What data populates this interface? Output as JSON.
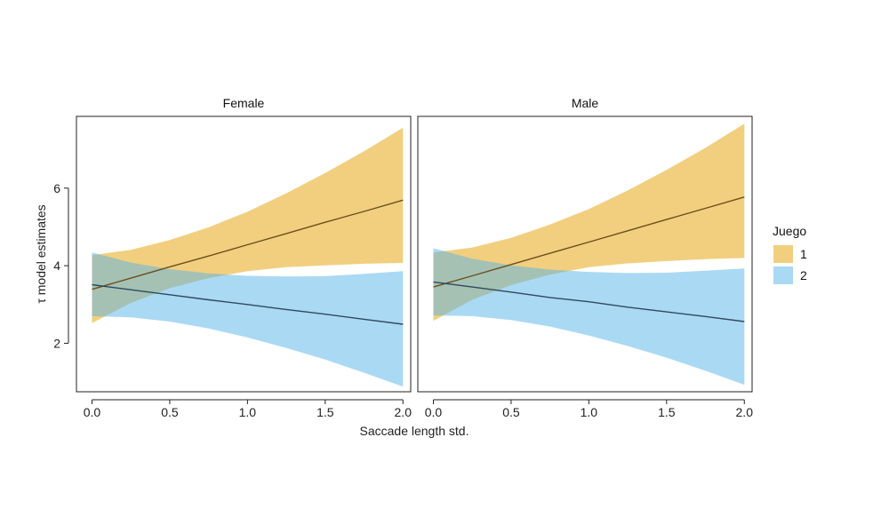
{
  "chart_data": {
    "type": "line",
    "xlabel": "Saccade length std.",
    "ylabel": "τ model estimates",
    "xlim": [
      -0.1,
      2.05
    ],
    "ylim": [
      0.75,
      7.85
    ],
    "x_ticks": [
      "0.0",
      "0.5",
      "1.0",
      "1.5",
      "2.0"
    ],
    "x_tick_values": [
      0,
      0.5,
      1,
      1.5,
      2
    ],
    "y_ticks": [
      "2",
      "4",
      "6"
    ],
    "y_tick_values": [
      2,
      4,
      6
    ],
    "legend": {
      "title": "Juego",
      "position": "right"
    },
    "colors": {
      "1": "#E69F00",
      "2": "#56B4E9",
      "line1": "#6b4f1c",
      "line2": "#2e4a5e"
    },
    "x": [
      0,
      0.25,
      0.5,
      0.75,
      1,
      1.25,
      1.5,
      1.75,
      2
    ],
    "panels": [
      {
        "name": "Female",
        "series": [
          {
            "name": "1",
            "fit": [
              3.39,
              3.68,
              3.97,
              4.25,
              4.54,
              4.83,
              5.12,
              5.4,
              5.69
            ],
            "lower": [
              2.52,
              3.04,
              3.42,
              3.68,
              3.86,
              3.96,
              4.01,
              4.05,
              4.07
            ],
            "upper": [
              4.27,
              4.41,
              4.66,
              4.99,
              5.39,
              5.87,
              6.39,
              6.95,
              7.56
            ]
          },
          {
            "name": "2",
            "fit": [
              3.51,
              3.38,
              3.25,
              3.12,
              3.0,
              2.87,
              2.75,
              2.62,
              2.49
            ],
            "lower": [
              2.7,
              2.67,
              2.56,
              2.38,
              2.15,
              1.88,
              1.58,
              1.24,
              0.88
            ],
            "upper": [
              4.34,
              4.08,
              3.91,
              3.8,
              3.74,
              3.72,
              3.73,
              3.79,
              3.86
            ]
          }
        ]
      },
      {
        "name": "Male",
        "series": [
          {
            "name": "1",
            "fit": [
              3.45,
              3.74,
              4.03,
              4.32,
              4.61,
              4.9,
              5.19,
              5.48,
              5.77
            ],
            "lower": [
              2.58,
              3.12,
              3.5,
              3.77,
              3.96,
              4.06,
              4.12,
              4.17,
              4.2
            ],
            "upper": [
              4.34,
              4.47,
              4.72,
              5.06,
              5.46,
              5.94,
              6.47,
              7.04,
              7.66
            ]
          },
          {
            "name": "2",
            "fit": [
              3.58,
              3.45,
              3.32,
              3.18,
              3.07,
              2.93,
              2.81,
              2.69,
              2.56
            ],
            "lower": [
              2.72,
              2.7,
              2.6,
              2.43,
              2.2,
              1.93,
              1.63,
              1.29,
              0.93
            ],
            "upper": [
              4.45,
              4.18,
              4.01,
              3.9,
              3.84,
              3.81,
              3.82,
              3.87,
              3.93
            ]
          }
        ]
      }
    ]
  }
}
